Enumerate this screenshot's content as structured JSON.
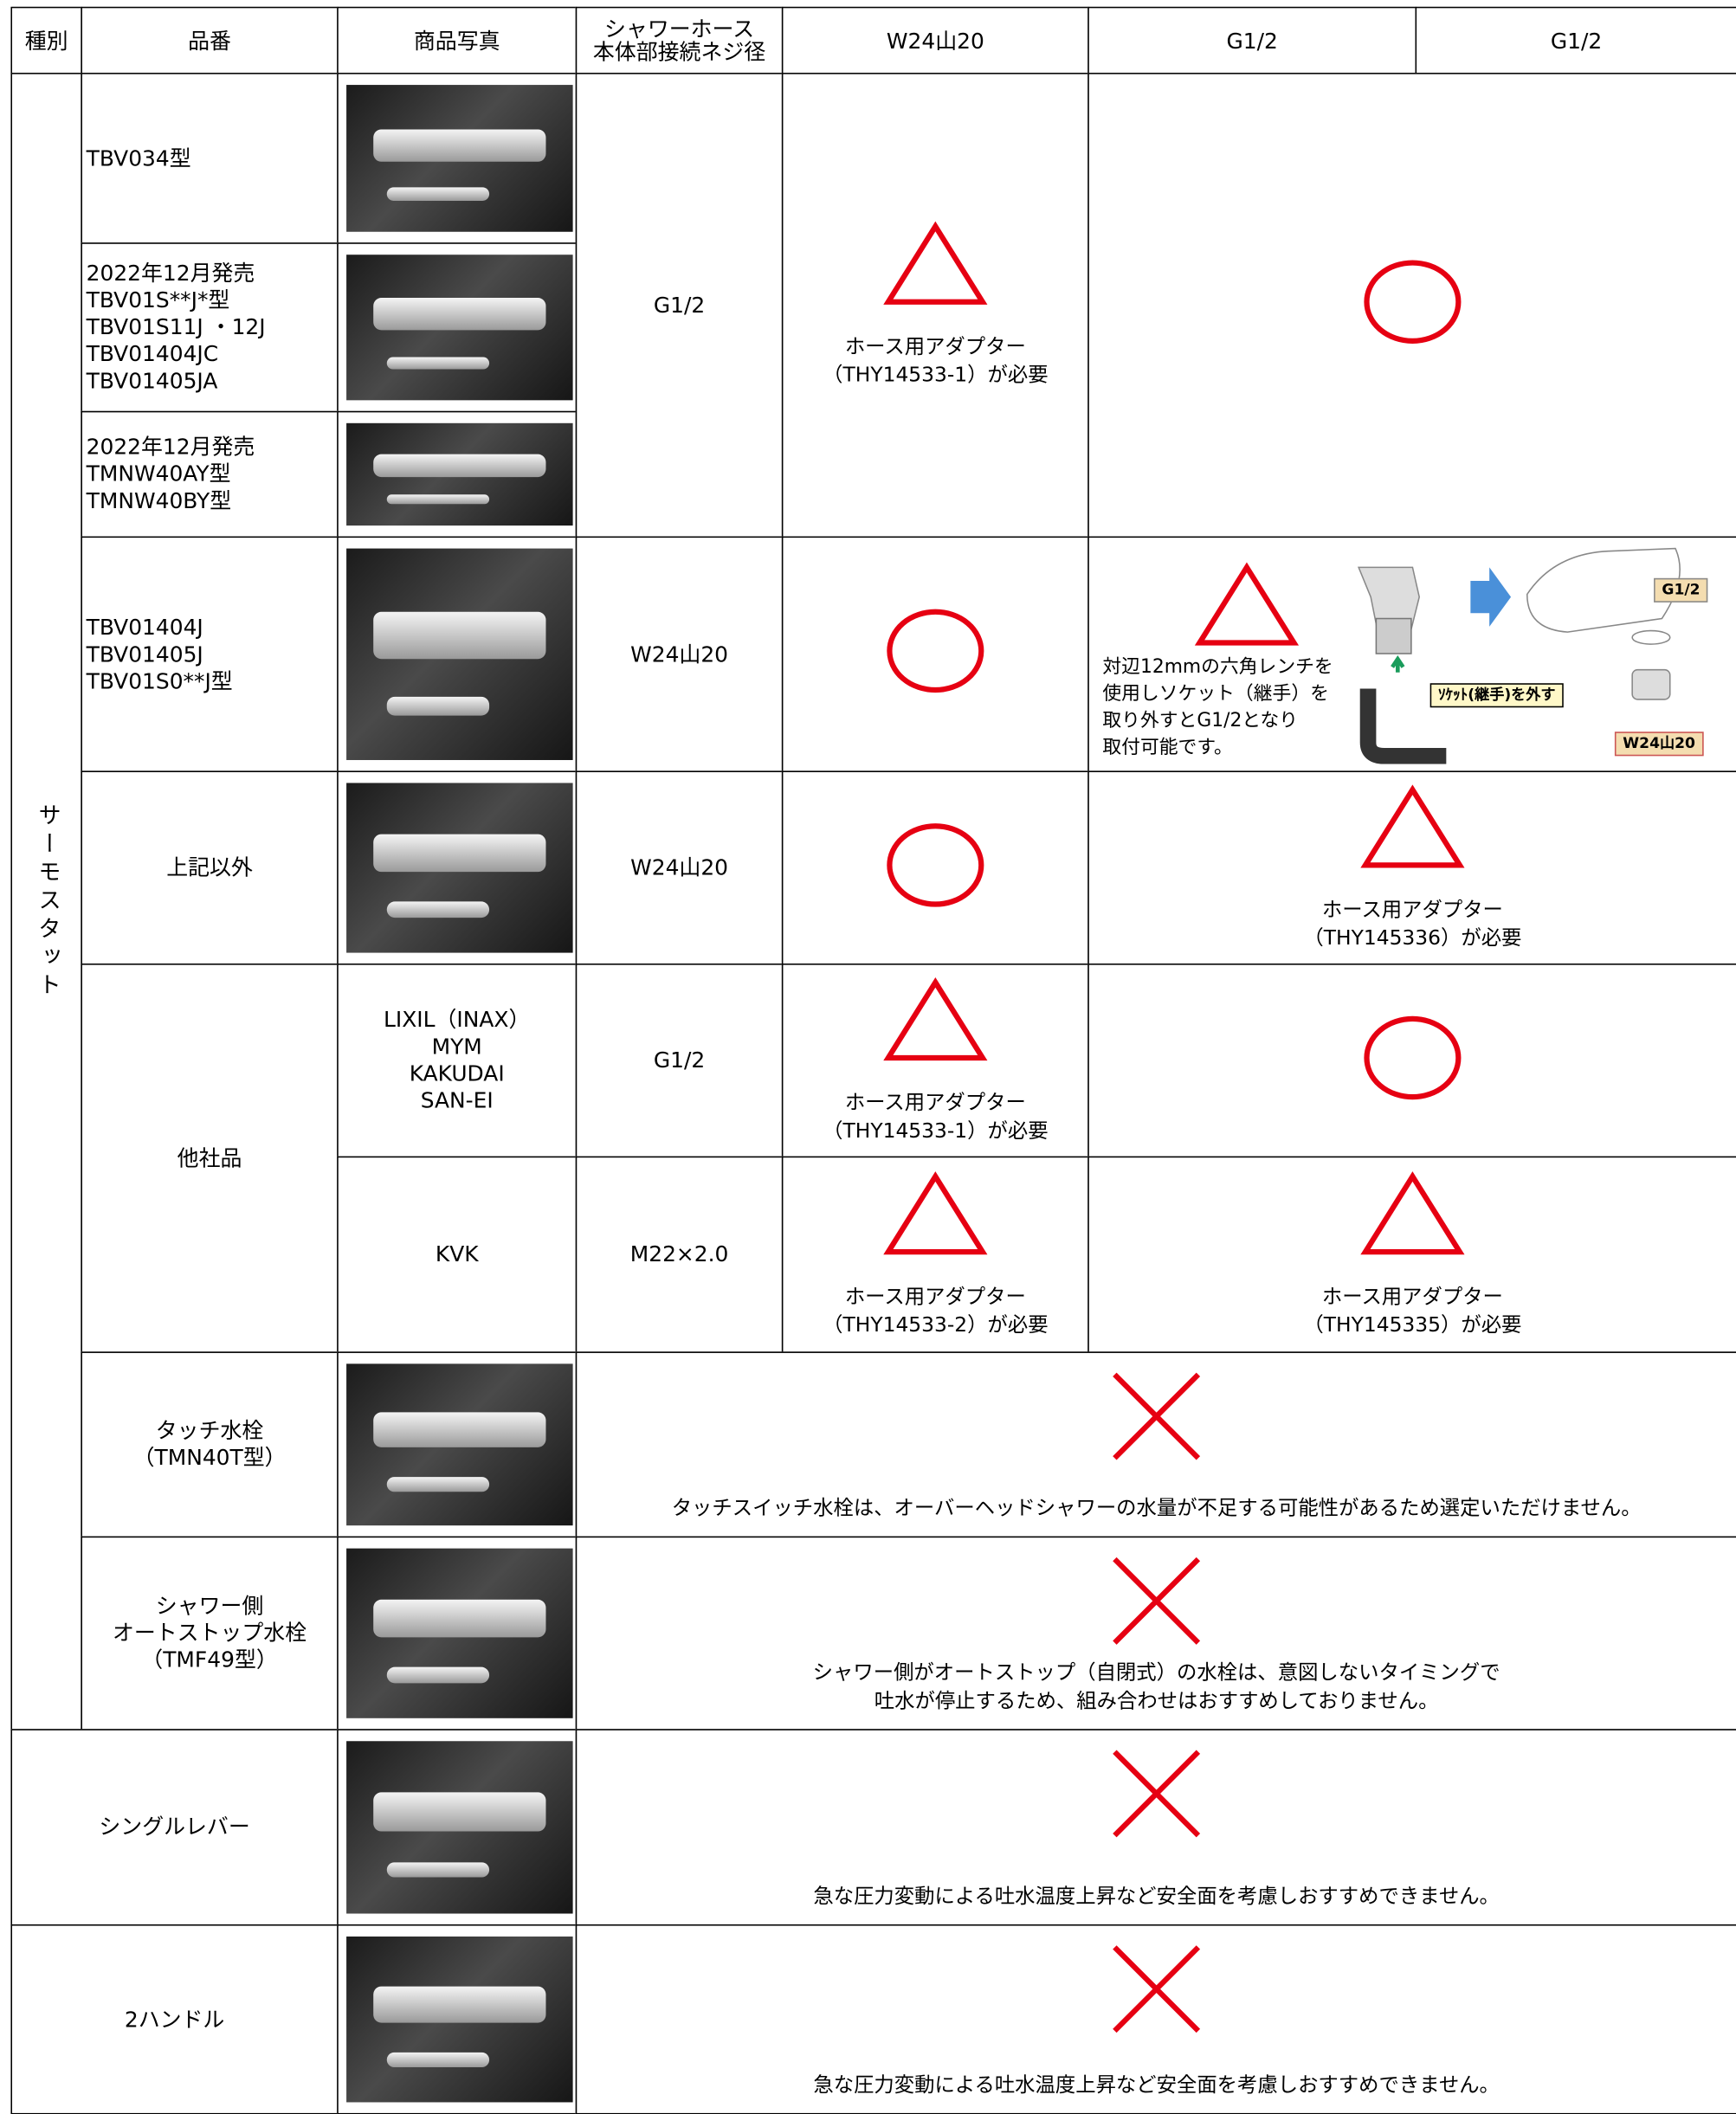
{
  "header": {
    "kind": "種別",
    "model": "品番",
    "photo": "商品写真",
    "thread": [
      "シャワーホース",
      "本体部接続ネジ径"
    ],
    "columns": [
      "W24山20",
      "G1/2",
      "G1/2"
    ]
  },
  "thermostat": {
    "kind": "サーモスタット",
    "toto_g1": {
      "models": [
        [
          "TBV034型"
        ],
        [
          "2022年12月発売",
          "TBV01S**J*型",
          "TBV01S11J ・12J",
          "TBV01404JC",
          "TBV01405JA"
        ],
        [
          "2022年12月発売",
          "TMNW40AY型",
          "TMNW40BY型"
        ]
      ],
      "thread": "G1/2",
      "w24_note": [
        "ホース用アダプター",
        "（THY14533-1）が必要"
      ]
    },
    "toto_g2": {
      "models": [
        "TBV01404J",
        "TBV01405J",
        "TBV01S0**J型"
      ],
      "thread": "W24山20",
      "g12_note": [
        "対辺12mmの六角レンチを",
        "使用しソケット（継手）を",
        "取り外すとG1/2となり",
        "取付可能です。"
      ],
      "diagram_labels": [
        "G1/2",
        "ｿｹｯﾄ(継手)を外す",
        "W24山20"
      ]
    },
    "toto_g3": {
      "model": "上記以外",
      "thread": "W24山20",
      "g12_note": [
        "ホース用アダプター",
        "（THY145336）が必要"
      ]
    },
    "others": {
      "label": "他社品",
      "rows": [
        {
          "makers": [
            "LIXIL（INAX）",
            "MYM",
            "KAKUDAI",
            "SAN-EI"
          ],
          "thread": "G1/2",
          "w24_note": [
            "ホース用アダプター",
            "（THY14533-1）が必要"
          ]
        },
        {
          "makers": [
            "KVK"
          ],
          "thread": "M22×2.0",
          "w24_note": [
            "ホース用アダプター",
            "（THY14533-2）が必要"
          ],
          "g12_note": [
            "ホース用アダプター",
            "（THY145335）が必要"
          ]
        }
      ]
    },
    "touch": {
      "name": [
        "タッチ水栓",
        "（TMN40T型）"
      ],
      "note": [
        "タッチスイッチ水栓は、オーバーヘッドシャワーの水量が不足する可能性があるため選定いただけません。"
      ]
    },
    "autostop": {
      "name": [
        "シャワー側",
        "オートストップ水栓",
        "（TMF49型）"
      ],
      "note": [
        "シャワー側がオートストップ（自閉式）の水栓は、意図しないタイミングで",
        "吐水が停止するため、組み合わせはおすすめしておりません。"
      ]
    }
  },
  "single_lever": {
    "kind": "シングルレバー",
    "note": [
      "急な圧力変動による吐水温度上昇など安全面を考慮しおすすめできません。"
    ]
  },
  "two_handle": {
    "kind": "2ハンドル",
    "note": [
      "急な圧力変動による吐水温度上昇など安全面を考慮しおすすめできません。"
    ]
  }
}
